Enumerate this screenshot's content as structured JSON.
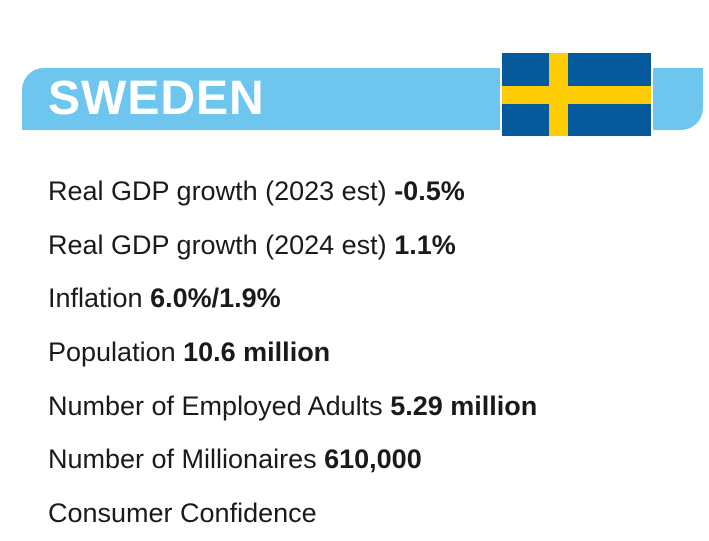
{
  "header": {
    "country": "SWEDEN",
    "flag_icon": "sweden-flag-icon",
    "banner_color": "#6ec6ee",
    "flag_colors": {
      "blue": "#045a9c",
      "yellow": "#fecc02"
    }
  },
  "stats": [
    {
      "label": "Real GDP growth (2023 est)",
      "value": "-0.5%"
    },
    {
      "label": "Real GDP growth (2024 est)",
      "value": "1.1%"
    },
    {
      "label": "Inflation",
      "value": "6.0%/1.9%"
    },
    {
      "label": "Population",
      "value": "10.6 million"
    },
    {
      "label": "Number of Employed Adults",
      "value": "5.29 million"
    },
    {
      "label": "Number of Millionaires",
      "value": "610,000"
    },
    {
      "label": "Consumer Confidence",
      "value": ""
    }
  ]
}
